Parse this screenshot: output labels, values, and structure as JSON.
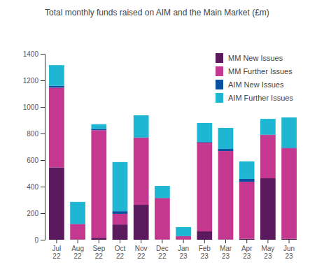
{
  "chart_data": {
    "type": "bar",
    "stacked": true,
    "title": "Total monthly funds raised on AIM and the Main Market (£m)",
    "categories": [
      "Jul 22",
      "Aug 22",
      "Sep 22",
      "Oct 22",
      "Nov 22",
      "Dec 22",
      "Jan 23",
      "Feb 23",
      "Mar 23",
      "Apr 23",
      "May 23",
      "Jun 23"
    ],
    "series": [
      {
        "name": "MM New Issues",
        "color": "#5c1a5e",
        "values": [
          545,
          3,
          15,
          115,
          263,
          2,
          2,
          63,
          3,
          8,
          463,
          8
        ]
      },
      {
        "name": "MM Further Issues",
        "color": "#c4388f",
        "values": [
          600,
          115,
          810,
          80,
          505,
          312,
          24,
          668,
          665,
          429,
          326,
          681
        ]
      },
      {
        "name": "AIM New Issues",
        "color": "#0b4fa0",
        "values": [
          15,
          2,
          10,
          20,
          3,
          2,
          1,
          5,
          16,
          21,
          3,
          4
        ]
      },
      {
        "name": "AIM Further Issues",
        "color": "#1fb6d4",
        "values": [
          155,
          165,
          35,
          370,
          166,
          89,
          68,
          143,
          158,
          132,
          118,
          228
        ]
      }
    ],
    "ylim": [
      0,
      1400
    ],
    "yticks": [
      0,
      200,
      400,
      600,
      800,
      1000,
      1200,
      1400
    ],
    "grid": false,
    "legend": "top-right"
  }
}
